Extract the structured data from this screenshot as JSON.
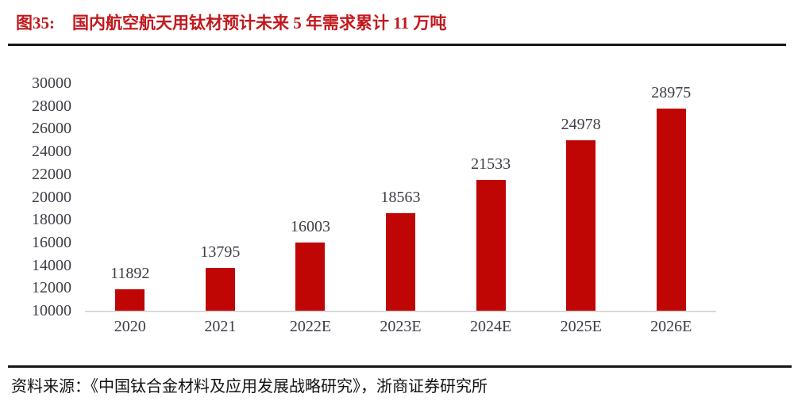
{
  "header": {
    "figure_label": "图35:",
    "title": "国内航空航天用钛材预计未来 5 年需求累计 11 万吨"
  },
  "chart_data": {
    "type": "bar",
    "title": "国内航空航天用钛材预计未来 5 年需求累计 11 万吨",
    "categories": [
      "2020",
      "2021",
      "2022E",
      "2023E",
      "2024E",
      "2025E",
      "2026E"
    ],
    "values": [
      11892,
      13795,
      16003,
      18563,
      21533,
      24978,
      28975
    ],
    "xlabel": "",
    "ylabel": "",
    "ylim": [
      10000,
      30000
    ],
    "ytick_step": 2000,
    "yticks": [
      30000,
      28000,
      26000,
      24000,
      22000,
      20000,
      18000,
      16000,
      14000,
      12000,
      10000
    ],
    "grid": false,
    "legend": false,
    "data_labels": true,
    "bar_color": "#c00505",
    "axis_line_color": "#d9d9d9",
    "label_color": "#3d3d47"
  },
  "footer": {
    "source": "资料来源：《中国钛合金材料及应用发展战略研究》，浙商证券研究所"
  },
  "colors": {
    "title_red": "#c2191d",
    "rule_dark": "#161616"
  }
}
